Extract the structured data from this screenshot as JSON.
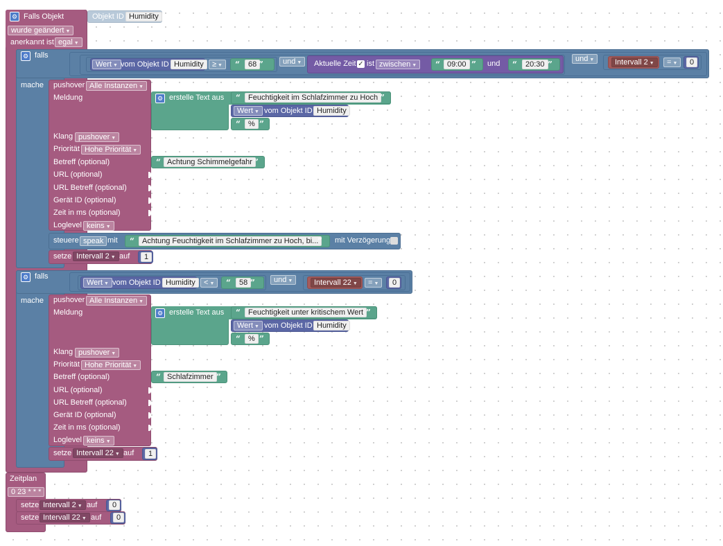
{
  "event": {
    "label": "Falls Objekt",
    "objekt_id_label": "Objekt ID",
    "objekt_id": "Humidity",
    "changed": "wurde geändert",
    "ack_label": "anerkannt ist",
    "ack_value": "egal"
  },
  "if1": {
    "falls": "falls",
    "mache": "mache",
    "wert": "Wert",
    "vom_objekt_id": "vom Objekt ID",
    "obj": "Humidity",
    "op": "≥",
    "num": "68",
    "und": "und",
    "zeit_label": "Aktuelle Zeit",
    "ist": "ist",
    "zwischen": "zwischen",
    "t1": "09:00",
    "und_mid": "und",
    "t2": "20:30",
    "und2": "und",
    "var": "Intervall 2",
    "eq": "=",
    "zero": "0"
  },
  "push1": {
    "pushover": "pushover",
    "instance": "Alle Instanzen",
    "meldung": "Meldung",
    "erstelle": "erstelle Text aus",
    "text1": "Feuchtigkeit im Schlafzimmer zu Hoch",
    "wert": "Wert",
    "vom_objekt_id": "vom Objekt ID",
    "obj": "Humidity",
    "pct": "%",
    "klang": "Klang",
    "klang_val": "pushover",
    "prio": "Priorität",
    "prio_val": "Hohe Priorität",
    "betreff": "Betreff (optional)",
    "betreff_val": "Achtung Schimmelgefahr",
    "url": "URL (optional)",
    "url_betreff": "URL Betreff (optional)",
    "geraet": "Gerät ID (optional)",
    "zeit": "Zeit in ms (optional)",
    "loglevel": "Loglevel",
    "loglevel_val": "keins"
  },
  "steuere": {
    "label": "steuere",
    "target": "speak",
    "mit": "mit",
    "text": "Achtung Feuchtigkeit im Schlafzimmer zu Hoch, bi...",
    "verz": "mit Verzögerung"
  },
  "setze1": {
    "label": "setze",
    "var": "Intervall 2",
    "auf": "auf",
    "val": "1"
  },
  "if2": {
    "falls": "falls",
    "mache": "mache",
    "wert": "Wert",
    "vom_objekt_id": "vom Objekt ID",
    "obj": "Humidity",
    "op": "<",
    "num": "58",
    "und": "und",
    "var": "Intervall 22",
    "eq": "=",
    "zero": "0"
  },
  "push2": {
    "pushover": "pushover",
    "instance": "Alle Instanzen",
    "meldung": "Meldung",
    "erstelle": "erstelle Text aus",
    "text1": "Feuchtigkeit unter kritischem Wert",
    "wert": "Wert",
    "vom_objekt_id": "vom Objekt ID",
    "obj": "Humidity",
    "pct": "%",
    "klang": "Klang",
    "klang_val": "pushover",
    "prio": "Priorität",
    "prio_val": "Hohe Priorität",
    "betreff": "Betreff (optional)",
    "betreff_val": "Schlafzimmer",
    "url": "URL (optional)",
    "url_betreff": "URL Betreff (optional)",
    "geraet": "Gerät ID (optional)",
    "zeit": "Zeit in ms (optional)",
    "loglevel": "Loglevel",
    "loglevel_val": "keins"
  },
  "setze2": {
    "label": "setze",
    "var": "Intervall 22",
    "auf": "auf",
    "val": "1"
  },
  "zeitplan": {
    "label": "Zeitplan",
    "cron": "0 23 * * *",
    "s1_label": "setze",
    "s1_var": "Intervall 2",
    "s1_auf": "auf",
    "s1_val": "0",
    "s2_label": "setze",
    "s2_var": "Intervall 22",
    "s2_auf": "auf",
    "s2_val": "0"
  },
  "icons": {
    "gear": "gear-icon",
    "dropdown": "chevron-down-icon",
    "quote": "quote-icon",
    "checkbox": "checkbox-icon"
  },
  "colors": {
    "event": "#a55b80",
    "control": "#5b80a5",
    "text": "#5ba58c",
    "value": "#5b67a5",
    "time": "#745ba5",
    "variable": "#a55b5b"
  }
}
